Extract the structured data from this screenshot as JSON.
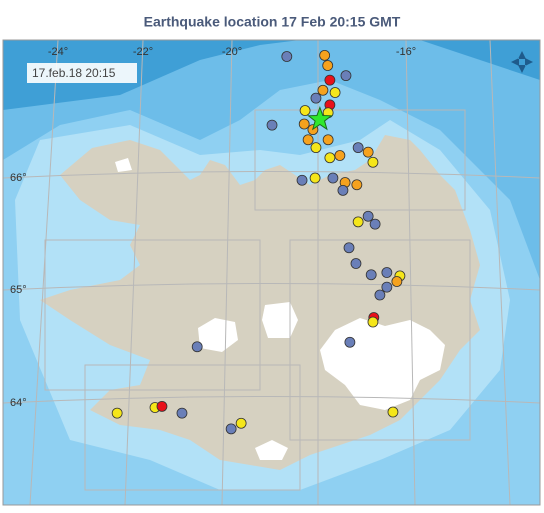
{
  "title": "Earthquake location   17 Feb 20:15 GMT",
  "timestamp": "17.feb.18  20:15",
  "lon_labels": [
    "-24°",
    "-22°",
    "-20°",
    "-16°"
  ],
  "lat_labels": [
    "66°",
    "65°",
    "64°"
  ],
  "quakes": [
    {
      "lon": -18.74,
      "lat": 67.08,
      "color": "#6a7fb8"
    },
    {
      "lon": -17.87,
      "lat": 67.09,
      "color": "#f5a21e"
    },
    {
      "lon": -17.8,
      "lat": 67.0,
      "color": "#f5a21e"
    },
    {
      "lon": -17.38,
      "lat": 66.91,
      "color": "#6a7fb8"
    },
    {
      "lon": -17.75,
      "lat": 66.87,
      "color": "#e8101a"
    },
    {
      "lon": -17.91,
      "lat": 66.78,
      "color": "#f5a21e"
    },
    {
      "lon": -17.63,
      "lat": 66.76,
      "color": "#f5e61a"
    },
    {
      "lon": -18.07,
      "lat": 66.71,
      "color": "#6a7fb8"
    },
    {
      "lon": -18.32,
      "lat": 66.6,
      "color": "#f5e61a"
    },
    {
      "lon": -17.75,
      "lat": 66.65,
      "color": "#e8101a"
    },
    {
      "lon": -17.79,
      "lat": 66.58,
      "color": "#f5e61a"
    },
    {
      "lon": -18.34,
      "lat": 66.48,
      "color": "#f5a21e"
    },
    {
      "lon": -18.14,
      "lat": 66.43,
      "color": "#f5a21e"
    },
    {
      "lon": -18.25,
      "lat": 66.34,
      "color": "#f5a21e"
    },
    {
      "lon": -17.79,
      "lat": 66.34,
      "color": "#f5a21e"
    },
    {
      "lon": -18.07,
      "lat": 66.27,
      "color": "#f5e61a"
    },
    {
      "lon": -17.75,
      "lat": 66.18,
      "color": "#f5e61a"
    },
    {
      "lon": -17.52,
      "lat": 66.2,
      "color": "#f5a21e"
    },
    {
      "lon": -17.1,
      "lat": 66.27,
      "color": "#6a7fb8"
    },
    {
      "lon": -16.87,
      "lat": 66.23,
      "color": "#f5a21e"
    },
    {
      "lon": -16.76,
      "lat": 66.14,
      "color": "#f5e61a"
    },
    {
      "lon": -18.09,
      "lat": 66.0,
      "color": "#f5e61a"
    },
    {
      "lon": -18.39,
      "lat": 65.98,
      "color": "#6a7fb8"
    },
    {
      "lon": -17.68,
      "lat": 66.0,
      "color": "#6a7fb8"
    },
    {
      "lon": -17.4,
      "lat": 65.96,
      "color": "#f5a21e"
    },
    {
      "lon": -17.13,
      "lat": 65.94,
      "color": "#f5a21e"
    },
    {
      "lon": -17.45,
      "lat": 65.89,
      "color": "#6a7fb8"
    },
    {
      "lon": -19.08,
      "lat": 66.47,
      "color": "#6a7fb8"
    },
    {
      "lon": -16.87,
      "lat": 65.66,
      "color": "#6a7fb8"
    },
    {
      "lon": -16.71,
      "lat": 65.59,
      "color": "#6a7fb8"
    },
    {
      "lon": -17.1,
      "lat": 65.61,
      "color": "#f5e61a"
    },
    {
      "lon": -17.31,
      "lat": 65.38,
      "color": "#6a7fb8"
    },
    {
      "lon": -17.15,
      "lat": 65.24,
      "color": "#6a7fb8"
    },
    {
      "lon": -16.8,
      "lat": 65.14,
      "color": "#6a7fb8"
    },
    {
      "lon": -16.44,
      "lat": 65.16,
      "color": "#6a7fb8"
    },
    {
      "lon": -16.14,
      "lat": 65.13,
      "color": "#f5e61a"
    },
    {
      "lon": -16.21,
      "lat": 65.08,
      "color": "#f5a21e"
    },
    {
      "lon": -16.44,
      "lat": 65.03,
      "color": "#6a7fb8"
    },
    {
      "lon": -16.6,
      "lat": 64.96,
      "color": "#6a7fb8"
    },
    {
      "lon": -16.74,
      "lat": 64.76,
      "color": "#e8101a"
    },
    {
      "lon": -16.76,
      "lat": 64.72,
      "color": "#f5e61a"
    },
    {
      "lon": -17.29,
      "lat": 64.54,
      "color": "#6a7fb8"
    },
    {
      "lon": -20.8,
      "lat": 64.5,
      "color": "#6a7fb8"
    },
    {
      "lon": -16.3,
      "lat": 63.92,
      "color": "#f5e61a"
    },
    {
      "lon": -21.77,
      "lat": 63.96,
      "color": "#f5e61a"
    },
    {
      "lon": -21.61,
      "lat": 63.97,
      "color": "#e8101a"
    },
    {
      "lon": -21.15,
      "lat": 63.91,
      "color": "#6a7fb8"
    },
    {
      "lon": -22.64,
      "lat": 63.91,
      "color": "#f5e61a"
    },
    {
      "lon": -19.79,
      "lat": 63.82,
      "color": "#f5e61a"
    },
    {
      "lon": -20.02,
      "lat": 63.77,
      "color": "#6a7fb8"
    }
  ],
  "main_quake": {
    "lon": -17.98,
    "lat": 66.52,
    "color": "#2ee82e"
  }
}
